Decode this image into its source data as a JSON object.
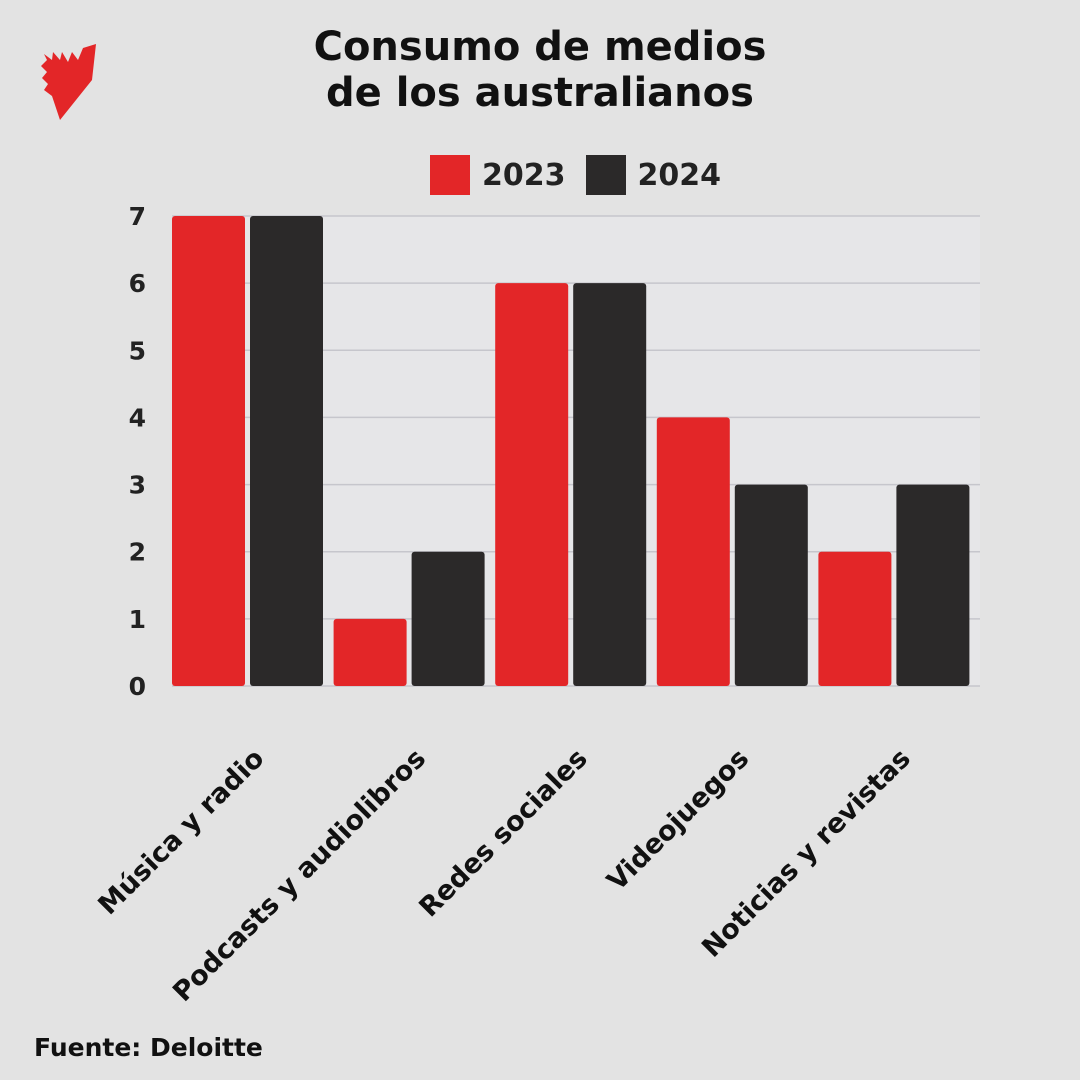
{
  "logo": {
    "name": "sbs-logo-icon",
    "color": "#e32628"
  },
  "source": "Fuente: Deloitte",
  "chart_data": {
    "type": "bar",
    "title": [
      "Consumo de medios",
      "de los australianos"
    ],
    "categories": [
      "Música y radio",
      "Podcasts y audiolibros",
      "Redes sociales",
      "Videojuegos",
      "Noticias y revistas"
    ],
    "series": [
      {
        "name": "2023",
        "color": "#e32628",
        "values": [
          7,
          1,
          6,
          4,
          2
        ]
      },
      {
        "name": "2024",
        "color": "#2b2929",
        "values": [
          7,
          2,
          6,
          3,
          3
        ]
      }
    ],
    "yticks": [
      "0",
      "1",
      "2",
      "3",
      "4",
      "5",
      "6",
      "7"
    ],
    "ylim": [
      0,
      7
    ],
    "grid": true,
    "legend": "top-center"
  }
}
